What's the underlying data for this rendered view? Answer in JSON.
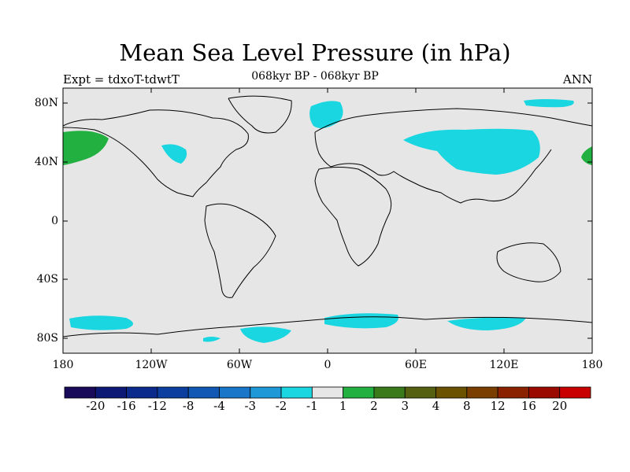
{
  "title": "Mean Sea Level Pressure (in hPa)",
  "left_string": "Expt = tdxoT-tdwtT",
  "center_string": "068kyr BP - 068kyr BP",
  "right_string": "ANN",
  "lat_labels": [
    "80N",
    "40N",
    "0",
    "40S",
    "80S"
  ],
  "lon_labels": [
    "180",
    "120W",
    "60W",
    "0",
    "60E",
    "120E",
    "180"
  ],
  "colorbar": {
    "colors": [
      "#1a0a5a",
      "#0d1a75",
      "#0a2a8c",
      "#0c3ea0",
      "#1157b4",
      "#1a76c8",
      "#1f98d8",
      "#1ad6e0",
      "#e6e6e6",
      "#22b040",
      "#3a7a1a",
      "#556010",
      "#6a5200",
      "#7a3e00",
      "#8a2200",
      "#9a0a00",
      "#c80000"
    ],
    "labels": [
      "-20",
      "-16",
      "-12",
      "-8",
      "-4",
      "-3",
      "-2",
      "-1",
      "1",
      "2",
      "3",
      "4",
      "8",
      "12",
      "16",
      "20"
    ]
  }
}
